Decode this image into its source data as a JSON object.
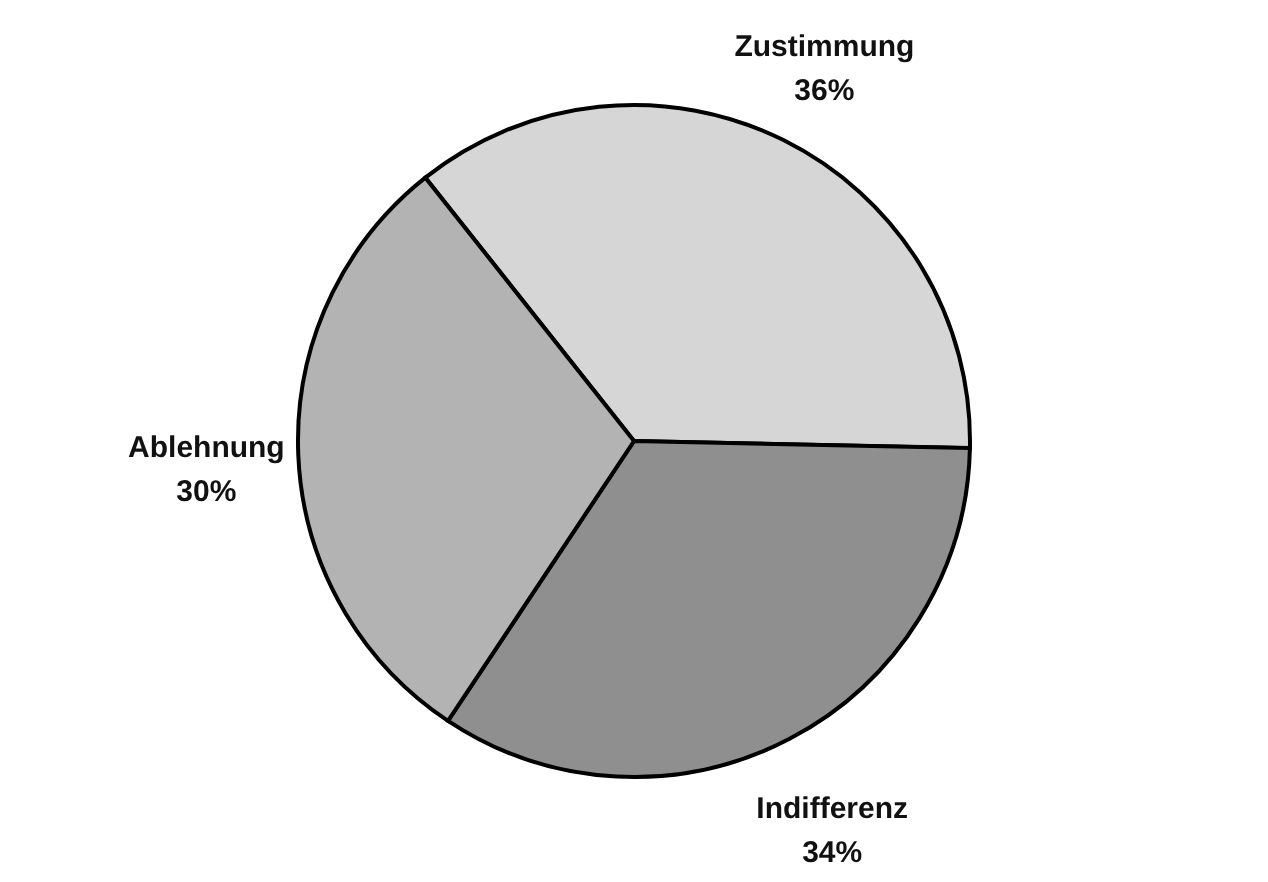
{
  "chart_data": {
    "type": "pie",
    "categories": [
      "Zustimmung",
      "Indifferenz",
      "Ablehnung"
    ],
    "values": [
      36,
      34,
      30
    ],
    "value_labels": [
      "36%",
      "34%",
      "30%"
    ],
    "colors": [
      "#d6d6d6",
      "#8f8f8f",
      "#b3b3b3"
    ]
  }
}
